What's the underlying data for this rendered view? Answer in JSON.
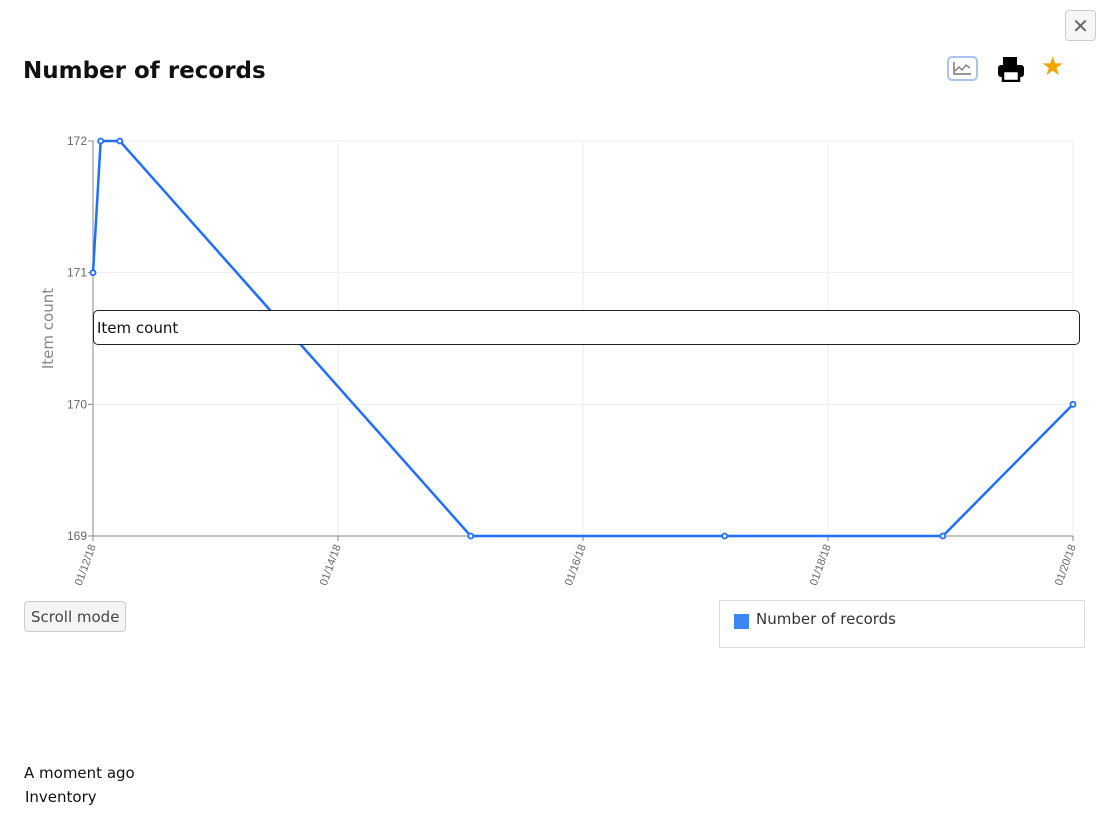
{
  "header": {
    "title": "Number of records",
    "close_label": "✕"
  },
  "toolbar": {
    "icons": [
      "chart-icon",
      "print-icon",
      "star-icon"
    ],
    "star_color": "#f0a500"
  },
  "overlay_input": {
    "value": "Item count"
  },
  "scroll_mode_label": "Scroll mode",
  "footer": {
    "time": "A moment ago",
    "source": "Inventory"
  },
  "chart_data": {
    "type": "line",
    "title": "Number of records",
    "ylabel": "Item count",
    "xlabel": "",
    "ylim": [
      169,
      172
    ],
    "yticks": [
      "169",
      "170",
      "171",
      "172"
    ],
    "xlim": [
      "2018-01-12T00:00",
      "2018-01-20T00:00"
    ],
    "xticks": [
      "01/12/18",
      "01/14/18",
      "01/16/18",
      "01/18/18",
      "01/20/18"
    ],
    "grid": true,
    "legend": "bottom-right",
    "series": [
      {
        "name": "Number of records",
        "color": "#1f6fff",
        "legend_color": "#3d86f5",
        "x": [
          "2018-01-12T00:00",
          "2018-01-12T01:30",
          "2018-01-12T05:15",
          "2018-01-15T02:00",
          "2018-01-17T03:45",
          "2018-01-18T22:30",
          "2018-01-20T00:00"
        ],
        "y": [
          171,
          172,
          172,
          169,
          169,
          169,
          170
        ]
      }
    ]
  }
}
